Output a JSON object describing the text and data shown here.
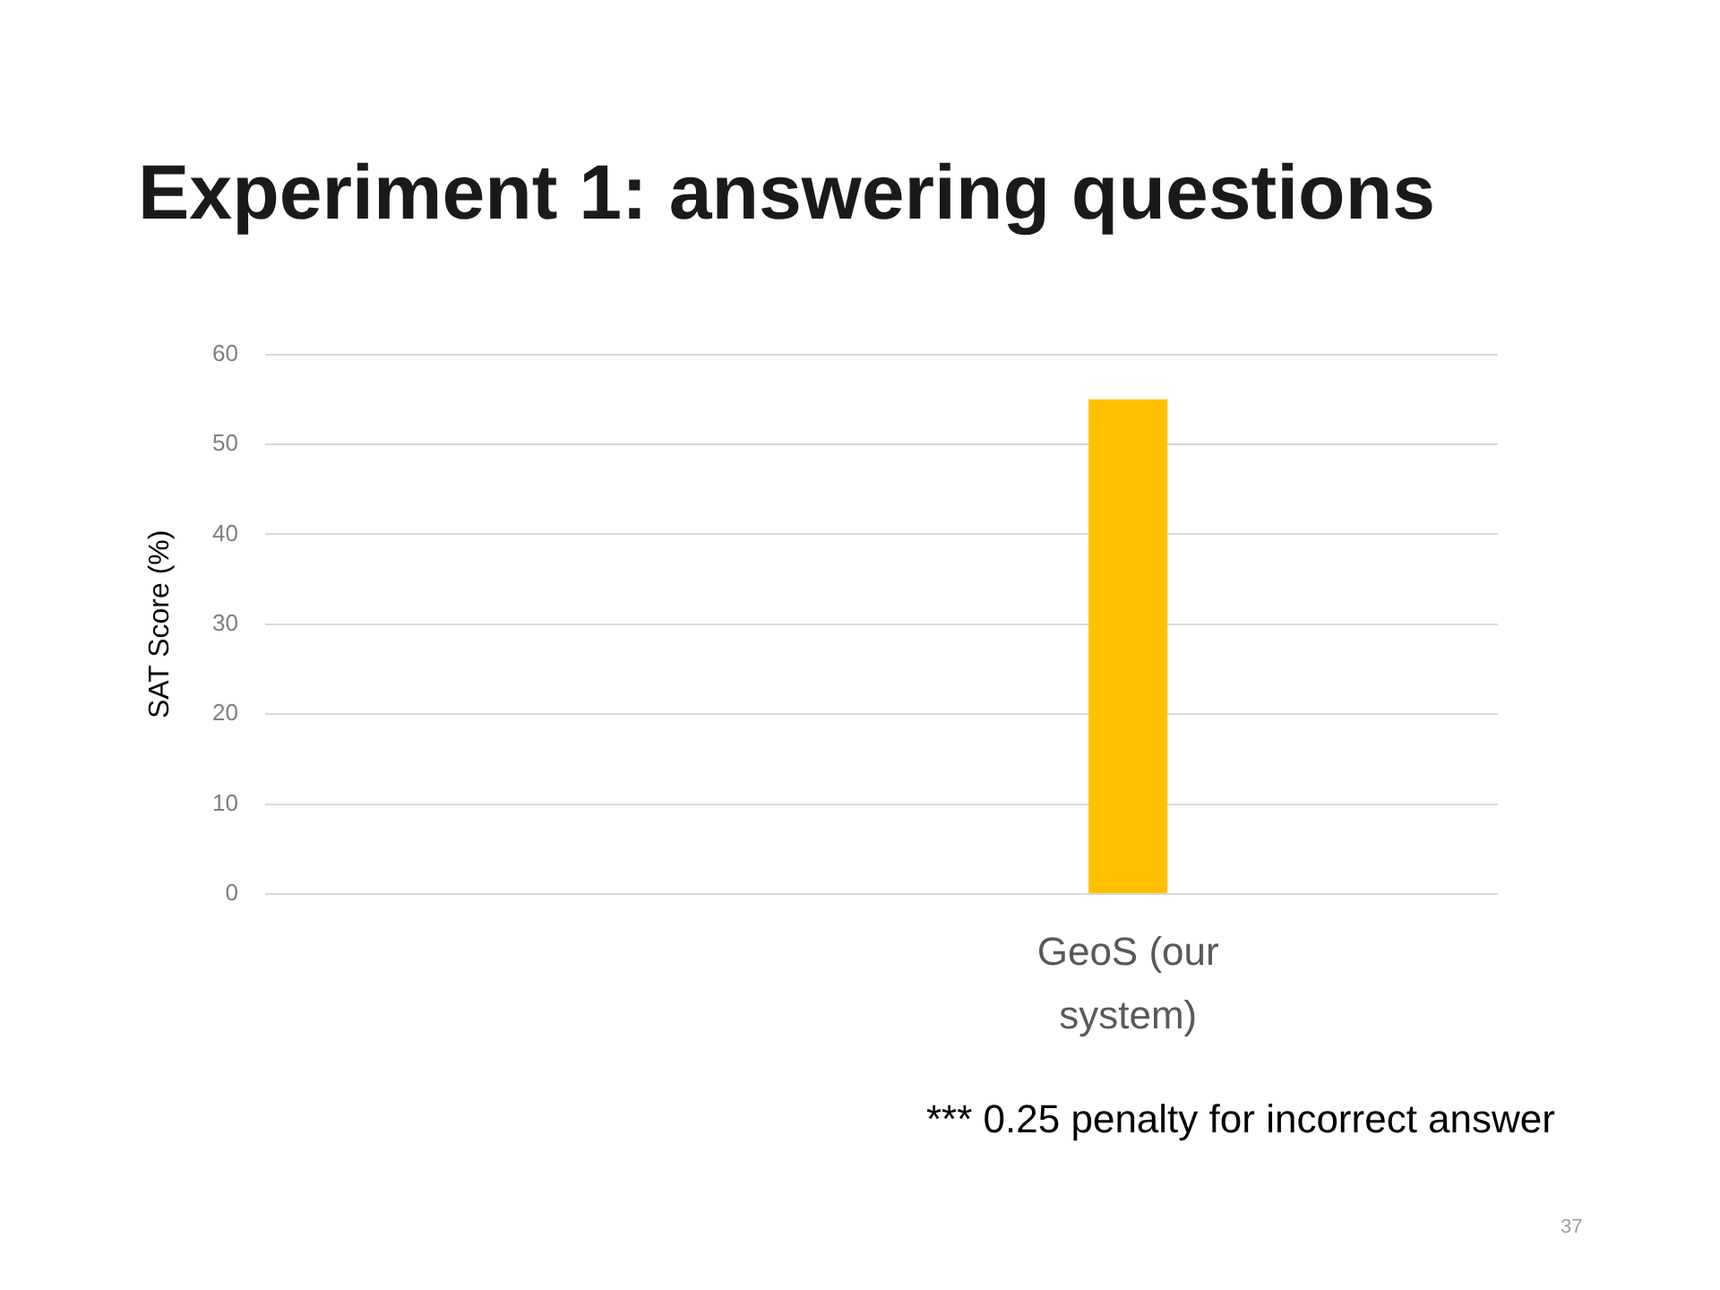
{
  "chart_data": {
    "type": "bar",
    "title": "Experiment 1: answering questions",
    "ylabel": "SAT Score (%)",
    "categories": [
      null,
      null,
      null,
      "GeoS (our system)",
      null
    ],
    "values": [
      null,
      null,
      null,
      55,
      null
    ],
    "color": "#ffc000",
    "ylim": [
      0,
      60
    ],
    "yticks": [
      0,
      10,
      20,
      30,
      40,
      50,
      60
    ],
    "grid": "y",
    "annotations": [
      "*** 0.25 penalty for incorrect answer",
      "37"
    ]
  }
}
